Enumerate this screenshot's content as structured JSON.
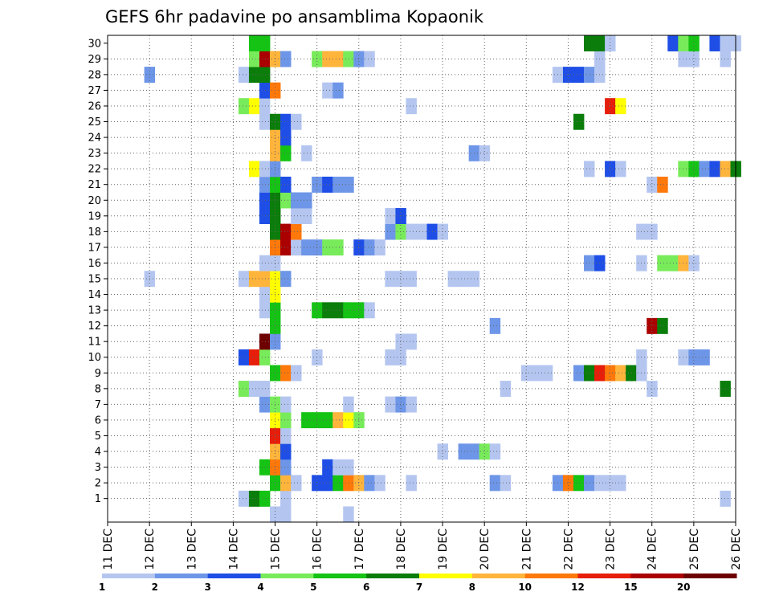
{
  "chart_data": {
    "type": "heatmap",
    "title": "GEFS 6hr padavine po ansamblima Kopaonik",
    "y_ticks": [
      "1",
      "2",
      "3",
      "4",
      "5",
      "6",
      "7",
      "8",
      "9",
      "10",
      "11",
      "12",
      "13",
      "14",
      "15",
      "16",
      "17",
      "18",
      "19",
      "20",
      "21",
      "22",
      "23",
      "24",
      "25",
      "26",
      "27",
      "28",
      "29",
      "30"
    ],
    "x_ticks": [
      "11 DEC",
      "12 DEC",
      "13 DEC",
      "14 DEC",
      "15 DEC",
      "16 DEC",
      "17 DEC",
      "18 DEC",
      "19 DEC",
      "20 DEC",
      "21 DEC",
      "22 DEC",
      "23 DEC",
      "24 DEC",
      "25 DEC",
      "26 DEC"
    ],
    "legend": {
      "labels": [
        "1",
        "2",
        "3",
        "4",
        "5",
        "6",
        "7",
        "8",
        "10",
        "12",
        "15",
        "20"
      ],
      "colors": [
        "#b4c6f0",
        "#6e96e8",
        "#1e4ee6",
        "#78eb5a",
        "#14c314",
        "#0a7d0a",
        "#ffff00",
        "#ffb43c",
        "#ff780a",
        "#e61e0a",
        "#aa0000",
        "#6e0000"
      ]
    },
    "colors": [
      "#b4c6f0",
      "#6e96e8",
      "#1e4ee6",
      "#78eb5a",
      "#14c314",
      "#0a7d0a",
      "#ffff00",
      "#ffb43c",
      "#ff780a",
      "#e61e0a",
      "#aa0000",
      "#6e0000"
    ],
    "grid": true,
    "steps_per_day": 4,
    "x_start_day": 11,
    "cells": [
      [
        1,
        13,
        1
      ],
      [
        1,
        14,
        6
      ],
      [
        1,
        15,
        5
      ],
      [
        1,
        17,
        1
      ],
      [
        1,
        59,
        1
      ],
      [
        0,
        16,
        1
      ],
      [
        0,
        17,
        1
      ],
      [
        0,
        23,
        1
      ],
      [
        2,
        16,
        5
      ],
      [
        2,
        17,
        8
      ],
      [
        2,
        18,
        1
      ],
      [
        2,
        20,
        3
      ],
      [
        2,
        21,
        3
      ],
      [
        2,
        22,
        5
      ],
      [
        2,
        23,
        9
      ],
      [
        2,
        24,
        8
      ],
      [
        2,
        25,
        2
      ],
      [
        2,
        26,
        1
      ],
      [
        2,
        29,
        1
      ],
      [
        2,
        37,
        2
      ],
      [
        2,
        38,
        1
      ],
      [
        2,
        43,
        2
      ],
      [
        2,
        44,
        9
      ],
      [
        2,
        45,
        5
      ],
      [
        2,
        46,
        2
      ],
      [
        2,
        47,
        1
      ],
      [
        2,
        48,
        1
      ],
      [
        2,
        49,
        1
      ],
      [
        3,
        15,
        5
      ],
      [
        3,
        16,
        9
      ],
      [
        3,
        17,
        2
      ],
      [
        3,
        21,
        3
      ],
      [
        3,
        22,
        1
      ],
      [
        3,
        23,
        1
      ],
      [
        4,
        16,
        8
      ],
      [
        4,
        17,
        3
      ],
      [
        4,
        32,
        1
      ],
      [
        4,
        34,
        2
      ],
      [
        4,
        35,
        2
      ],
      [
        4,
        36,
        4
      ],
      [
        4,
        37,
        1
      ],
      [
        5,
        16,
        10
      ],
      [
        5,
        17,
        1
      ],
      [
        6,
        16,
        7
      ],
      [
        6,
        17,
        4
      ],
      [
        6,
        19,
        5
      ],
      [
        6,
        20,
        5
      ],
      [
        6,
        21,
        5
      ],
      [
        6,
        22,
        8
      ],
      [
        6,
        23,
        7
      ],
      [
        6,
        24,
        4
      ],
      [
        7,
        15,
        2
      ],
      [
        7,
        16,
        4
      ],
      [
        7,
        17,
        1
      ],
      [
        7,
        23,
        1
      ],
      [
        7,
        27,
        1
      ],
      [
        7,
        28,
        2
      ],
      [
        7,
        29,
        1
      ],
      [
        8,
        13,
        4
      ],
      [
        8,
        14,
        1
      ],
      [
        8,
        15,
        1
      ],
      [
        8,
        38,
        1
      ],
      [
        8,
        52,
        1
      ],
      [
        8,
        59,
        6
      ],
      [
        9,
        16,
        5
      ],
      [
        9,
        17,
        9
      ],
      [
        9,
        18,
        1
      ],
      [
        9,
        40,
        1
      ],
      [
        9,
        41,
        1
      ],
      [
        9,
        42,
        1
      ],
      [
        9,
        45,
        2
      ],
      [
        9,
        46,
        6
      ],
      [
        9,
        47,
        10
      ],
      [
        9,
        48,
        9
      ],
      [
        9,
        49,
        8
      ],
      [
        9,
        50,
        6
      ],
      [
        9,
        51,
        1
      ],
      [
        10,
        13,
        3
      ],
      [
        10,
        14,
        10
      ],
      [
        10,
        15,
        4
      ],
      [
        10,
        20,
        1
      ],
      [
        10,
        27,
        1
      ],
      [
        10,
        28,
        1
      ],
      [
        10,
        51,
        1
      ],
      [
        10,
        55,
        1
      ],
      [
        10,
        56,
        2
      ],
      [
        10,
        57,
        2
      ],
      [
        11,
        15,
        12
      ],
      [
        11,
        16,
        2
      ],
      [
        11,
        28,
        1
      ],
      [
        11,
        29,
        1
      ],
      [
        12,
        16,
        5
      ],
      [
        12,
        37,
        2
      ],
      [
        12,
        52,
        11
      ],
      [
        12,
        53,
        6
      ],
      [
        13,
        15,
        1
      ],
      [
        13,
        16,
        5
      ],
      [
        13,
        20,
        5
      ],
      [
        13,
        21,
        6
      ],
      [
        13,
        22,
        6
      ],
      [
        13,
        23,
        5
      ],
      [
        13,
        24,
        5
      ],
      [
        13,
        25,
        1
      ],
      [
        14,
        15,
        1
      ],
      [
        14,
        16,
        7
      ],
      [
        15,
        4,
        1
      ],
      [
        15,
        13,
        1
      ],
      [
        15,
        14,
        8
      ],
      [
        15,
        15,
        8
      ],
      [
        15,
        16,
        7
      ],
      [
        15,
        17,
        2
      ],
      [
        15,
        27,
        1
      ],
      [
        15,
        28,
        1
      ],
      [
        15,
        29,
        1
      ],
      [
        15,
        33,
        1
      ],
      [
        15,
        34,
        1
      ],
      [
        15,
        35,
        1
      ],
      [
        16,
        15,
        1
      ],
      [
        16,
        16,
        1
      ],
      [
        16,
        46,
        2
      ],
      [
        16,
        47,
        3
      ],
      [
        16,
        51,
        1
      ],
      [
        16,
        53,
        4
      ],
      [
        16,
        54,
        4
      ],
      [
        16,
        55,
        8
      ],
      [
        16,
        56,
        1
      ],
      [
        17,
        16,
        9
      ],
      [
        17,
        17,
        11
      ],
      [
        17,
        18,
        1
      ],
      [
        17,
        19,
        2
      ],
      [
        17,
        20,
        2
      ],
      [
        17,
        21,
        4
      ],
      [
        17,
        22,
        4
      ],
      [
        17,
        24,
        3
      ],
      [
        17,
        25,
        2
      ],
      [
        17,
        26,
        1
      ],
      [
        18,
        16,
        6
      ],
      [
        18,
        17,
        11
      ],
      [
        18,
        18,
        9
      ],
      [
        18,
        27,
        2
      ],
      [
        18,
        28,
        4
      ],
      [
        18,
        29,
        1
      ],
      [
        18,
        30,
        1
      ],
      [
        18,
        31,
        3
      ],
      [
        18,
        32,
        1
      ],
      [
        18,
        51,
        1
      ],
      [
        18,
        52,
        1
      ],
      [
        19,
        15,
        3
      ],
      [
        19,
        16,
        6
      ],
      [
        19,
        18,
        1
      ],
      [
        19,
        19,
        1
      ],
      [
        19,
        27,
        1
      ],
      [
        19,
        28,
        3
      ],
      [
        20,
        15,
        3
      ],
      [
        20,
        16,
        6
      ],
      [
        20,
        17,
        4
      ],
      [
        20,
        18,
        2
      ],
      [
        20,
        19,
        2
      ],
      [
        21,
        15,
        2
      ],
      [
        21,
        16,
        5
      ],
      [
        21,
        17,
        3
      ],
      [
        21,
        20,
        2
      ],
      [
        21,
        21,
        3
      ],
      [
        21,
        22,
        2
      ],
      [
        21,
        23,
        2
      ],
      [
        21,
        52,
        1
      ],
      [
        21,
        53,
        9
      ],
      [
        22,
        14,
        7
      ],
      [
        22,
        15,
        1
      ],
      [
        22,
        16,
        2
      ],
      [
        22,
        46,
        1
      ],
      [
        22,
        48,
        3
      ],
      [
        22,
        49,
        1
      ],
      [
        22,
        55,
        4
      ],
      [
        22,
        56,
        5
      ],
      [
        22,
        57,
        2
      ],
      [
        22,
        58,
        3
      ],
      [
        22,
        59,
        8
      ],
      [
        22,
        60,
        6
      ],
      [
        23,
        16,
        8
      ],
      [
        23,
        17,
        5
      ],
      [
        23,
        19,
        1
      ],
      [
        23,
        35,
        2
      ],
      [
        23,
        36,
        1
      ],
      [
        24,
        16,
        8
      ],
      [
        24,
        17,
        3
      ],
      [
        25,
        15,
        1
      ],
      [
        25,
        16,
        6
      ],
      [
        25,
        17,
        3
      ],
      [
        25,
        18,
        1
      ],
      [
        25,
        45,
        6
      ],
      [
        26,
        13,
        4
      ],
      [
        26,
        14,
        7
      ],
      [
        26,
        15,
        1
      ],
      [
        26,
        29,
        1
      ],
      [
        26,
        48,
        10
      ],
      [
        26,
        49,
        7
      ],
      [
        27,
        15,
        3
      ],
      [
        27,
        16,
        9
      ],
      [
        27,
        21,
        1
      ],
      [
        27,
        22,
        2
      ],
      [
        28,
        4,
        2
      ],
      [
        28,
        13,
        1
      ],
      [
        28,
        14,
        6
      ],
      [
        28,
        15,
        6
      ],
      [
        28,
        43,
        1
      ],
      [
        28,
        44,
        3
      ],
      [
        28,
        45,
        3
      ],
      [
        28,
        46,
        2
      ],
      [
        28,
        47,
        1
      ],
      [
        29,
        14,
        4
      ],
      [
        29,
        15,
        11
      ],
      [
        29,
        16,
        8
      ],
      [
        29,
        17,
        2
      ],
      [
        29,
        20,
        4
      ],
      [
        29,
        21,
        8
      ],
      [
        29,
        22,
        8
      ],
      [
        29,
        23,
        4
      ],
      [
        29,
        24,
        2
      ],
      [
        29,
        25,
        1
      ],
      [
        29,
        47,
        1
      ],
      [
        29,
        55,
        1
      ],
      [
        29,
        56,
        1
      ],
      [
        29,
        59,
        1
      ],
      [
        30,
        14,
        5
      ],
      [
        30,
        15,
        5
      ],
      [
        30,
        46,
        6
      ],
      [
        30,
        47,
        6
      ],
      [
        30,
        48,
        1
      ],
      [
        30,
        54,
        3
      ],
      [
        30,
        55,
        4
      ],
      [
        30,
        56,
        5
      ],
      [
        30,
        58,
        3
      ],
      [
        30,
        59,
        1
      ],
      [
        30,
        60,
        1
      ]
    ]
  }
}
